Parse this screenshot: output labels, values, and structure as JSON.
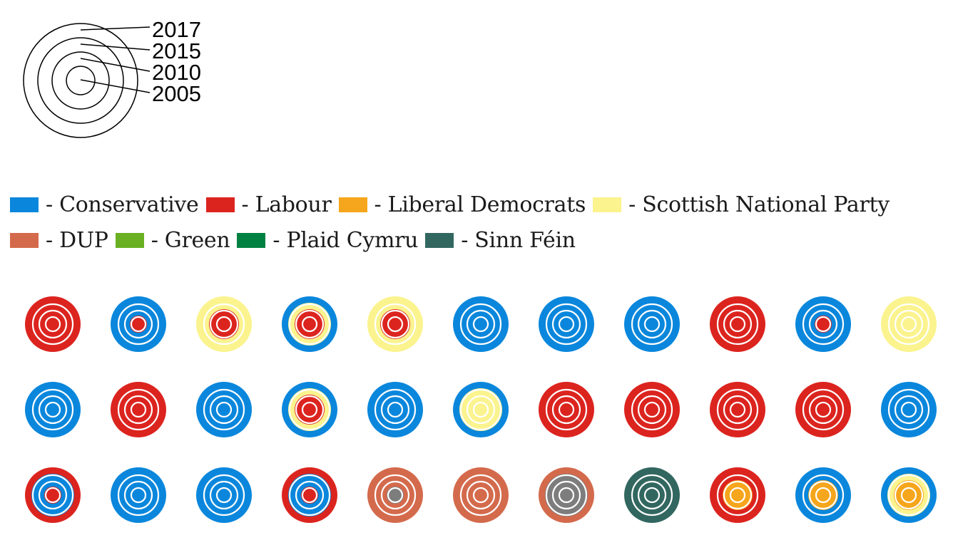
{
  "chart_data": {
    "type": "concentric-rings",
    "ring_key": {
      "labels": [
        "2017",
        "2015",
        "2010",
        "2005"
      ]
    },
    "parties": [
      {
        "id": "con",
        "label": "- Conservative",
        "color": "#0a87dc"
      },
      {
        "id": "lab",
        "label": "- Labour",
        "color": "#dc241f"
      },
      {
        "id": "ld",
        "label": "- Liberal Democrats",
        "color": "#f6a61c"
      },
      {
        "id": "snp",
        "label": "- Scottish National Party",
        "color": "#fbf38e"
      },
      {
        "id": "dup",
        "label": "- DUP",
        "color": "#d46a4c"
      },
      {
        "id": "green",
        "label": "- Green",
        "color": "#6ab023"
      },
      {
        "id": "pc",
        "label": "- Plaid Cymru",
        "color": "#008142"
      },
      {
        "id": "sf",
        "label": "- Sinn Féin",
        "color": "#326760"
      }
    ],
    "extra_colors": {
      "other": "#7d7d7d"
    },
    "constituencies_rings_2017_2015_2010_2005": [
      [
        [
          "lab",
          "lab",
          "lab",
          "lab"
        ],
        [
          "con",
          "con",
          "con",
          "lab"
        ],
        [
          "snp",
          "snp",
          "lab",
          "lab"
        ],
        [
          "con",
          "snp",
          "lab",
          "lab"
        ],
        [
          "snp",
          "snp",
          "lab",
          "lab"
        ],
        [
          "con",
          "con",
          "con",
          "con"
        ],
        [
          "con",
          "con",
          "con",
          "con"
        ],
        [
          "con",
          "con",
          "con",
          "con"
        ],
        [
          "lab",
          "lab",
          "lab",
          "lab"
        ],
        [
          "con",
          "con",
          "con",
          "lab"
        ],
        [
          "snp",
          "snp",
          "snp",
          "snp"
        ]
      ],
      [
        [
          "con",
          "con",
          "con",
          "con"
        ],
        [
          "lab",
          "lab",
          "lab",
          "lab"
        ],
        [
          "con",
          "con",
          "con",
          "con"
        ],
        [
          "con",
          "snp",
          "lab",
          "lab"
        ],
        [
          "con",
          "con",
          "con",
          "con"
        ],
        [
          "con",
          "snp",
          "snp",
          "snp"
        ],
        [
          "lab",
          "lab",
          "lab",
          "lab"
        ],
        [
          "lab",
          "lab",
          "lab",
          "lab"
        ],
        [
          "lab",
          "lab",
          "lab",
          "lab"
        ],
        [
          "lab",
          "lab",
          "lab",
          "lab"
        ],
        [
          "con",
          "con",
          "con",
          "con"
        ]
      ],
      [
        [
          "lab",
          "con",
          "con",
          "lab"
        ],
        [
          "con",
          "con",
          "con",
          "con"
        ],
        [
          "con",
          "con",
          "con",
          "con"
        ],
        [
          "lab",
          "con",
          "con",
          "lab"
        ],
        [
          "dup",
          "dup",
          "dup",
          "other"
        ],
        [
          "dup",
          "dup",
          "dup",
          "dup"
        ],
        [
          "dup",
          "other",
          "other",
          "other"
        ],
        [
          "sf",
          "sf",
          "sf",
          "sf"
        ],
        [
          "lab",
          "lab",
          "ld",
          "ld"
        ],
        [
          "con",
          "con",
          "ld",
          "ld"
        ],
        [
          "con",
          "snp",
          "ld",
          "ld"
        ]
      ]
    ]
  }
}
